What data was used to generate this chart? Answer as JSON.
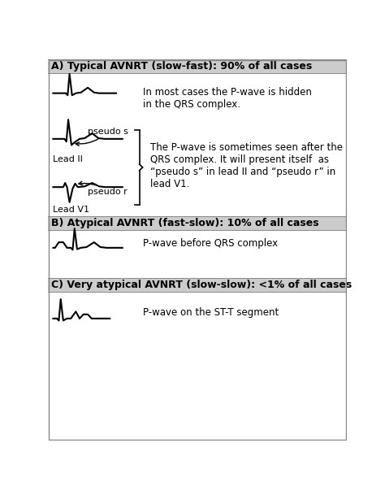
{
  "title_a": "A) Typical AVNRT (slow-fast): 90% of all cases",
  "title_b": "B) Atypical AVNRT (fast-slow): 10% of all cases",
  "title_c": "C) Very atypical AVNRT (slow-slow): <1% of all cases",
  "text_a1": "In most cases the P-wave is hidden\nin the QRS complex.",
  "text_a2": "The P-wave is sometimes seen after the\nQRS complex. It will present itself  as\n“pseudo s” in lead II and “pseudo r” in\nlead V1.",
  "text_b": "P-wave before QRS complex",
  "text_c": "P-wave on the ST-T segment",
  "label_leadII": "Lead II",
  "label_leadV1": "Lead V1",
  "label_pseudo_s": "pseudo s",
  "label_pseudo_r": "pseudo r",
  "bg_color": "#ffffff",
  "header_bg": "#cccccc",
  "line_color": "#000000",
  "text_color": "#000000",
  "title_fontsize": 9.0,
  "label_fontsize": 8.0,
  "text_fontsize": 8.5
}
